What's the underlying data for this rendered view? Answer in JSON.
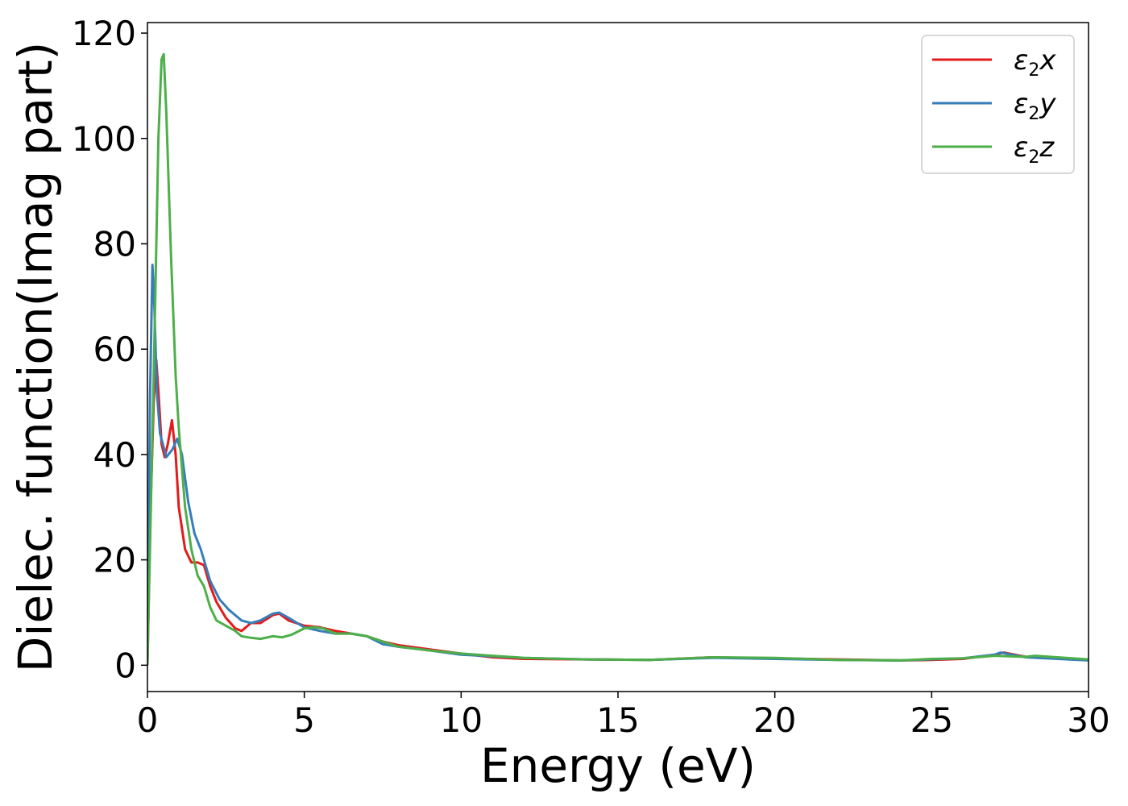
{
  "chart_data": {
    "type": "line",
    "xlabel": "Energy (eV)",
    "ylabel": "Dielec. function(Imag part)",
    "xlim": [
      0,
      30
    ],
    "ylim": [
      -5,
      122
    ],
    "xticks": [
      0,
      5,
      10,
      15,
      20,
      25,
      30
    ],
    "yticks": [
      0,
      20,
      40,
      60,
      80,
      100,
      120
    ],
    "xtick_labels": [
      "0",
      "5",
      "10",
      "15",
      "20",
      "25",
      "30"
    ],
    "ytick_labels": [
      "0",
      "20",
      "40",
      "60",
      "80",
      "100",
      "120"
    ],
    "grid": false,
    "legend": {
      "position": "top-right",
      "entries": [
        {
          "base": "ε",
          "sub": "2",
          "suffix": "x"
        },
        {
          "base": "ε",
          "sub": "2",
          "suffix": "y"
        },
        {
          "base": "ε",
          "sub": "2",
          "suffix": "z"
        }
      ]
    },
    "series": [
      {
        "color": "#e41a1c",
        "points": [
          [
            0,
            0
          ],
          [
            0.1,
            30
          ],
          [
            0.2,
            50
          ],
          [
            0.28,
            58
          ],
          [
            0.35,
            52
          ],
          [
            0.45,
            42
          ],
          [
            0.55,
            39.5
          ],
          [
            0.65,
            42
          ],
          [
            0.78,
            46.5
          ],
          [
            0.9,
            40
          ],
          [
            1.0,
            30
          ],
          [
            1.2,
            22
          ],
          [
            1.4,
            19.5
          ],
          [
            1.6,
            19.5
          ],
          [
            1.8,
            19
          ],
          [
            2.0,
            15
          ],
          [
            2.2,
            12
          ],
          [
            2.5,
            9
          ],
          [
            2.8,
            7
          ],
          [
            3.0,
            6.5
          ],
          [
            3.3,
            8
          ],
          [
            3.6,
            8
          ],
          [
            4.0,
            9.5
          ],
          [
            4.2,
            9.8
          ],
          [
            4.5,
            8.5
          ],
          [
            5.0,
            7.5
          ],
          [
            5.5,
            7.2
          ],
          [
            6.0,
            6.5
          ],
          [
            6.5,
            6.0
          ],
          [
            7.0,
            5.5
          ],
          [
            7.5,
            4.5
          ],
          [
            8.0,
            3.8
          ],
          [
            9.0,
            3.0
          ],
          [
            10.0,
            2.2
          ],
          [
            11.0,
            1.5
          ],
          [
            12.0,
            1.2
          ],
          [
            14.0,
            1.1
          ],
          [
            16.0,
            1.0
          ],
          [
            18.0,
            1.5
          ],
          [
            20.0,
            1.3
          ],
          [
            22.0,
            1.1
          ],
          [
            24.0,
            0.9
          ],
          [
            25.0,
            1.0
          ],
          [
            26.0,
            1.2
          ],
          [
            27.0,
            2.0
          ],
          [
            27.3,
            2.4
          ],
          [
            28.0,
            1.6
          ],
          [
            30.0,
            1.0
          ]
        ]
      },
      {
        "color": "#377eb8",
        "points": [
          [
            0,
            0
          ],
          [
            0.08,
            50
          ],
          [
            0.16,
            76
          ],
          [
            0.22,
            68
          ],
          [
            0.3,
            52
          ],
          [
            0.4,
            44
          ],
          [
            0.6,
            39.5
          ],
          [
            0.8,
            41
          ],
          [
            0.95,
            43
          ],
          [
            1.1,
            40
          ],
          [
            1.3,
            31
          ],
          [
            1.5,
            25
          ],
          [
            1.7,
            22
          ],
          [
            2.0,
            16
          ],
          [
            2.3,
            12.5
          ],
          [
            2.6,
            10.5
          ],
          [
            3.0,
            8.5
          ],
          [
            3.3,
            8.0
          ],
          [
            3.6,
            8.5
          ],
          [
            4.0,
            9.8
          ],
          [
            4.2,
            10
          ],
          [
            4.5,
            9.0
          ],
          [
            5.0,
            7.2
          ],
          [
            5.5,
            6.5
          ],
          [
            6.0,
            6.0
          ],
          [
            6.5,
            6.0
          ],
          [
            7.0,
            5.5
          ],
          [
            7.5,
            4.0
          ],
          [
            8.0,
            3.5
          ],
          [
            9.0,
            2.8
          ],
          [
            10.0,
            2.0
          ],
          [
            11.0,
            1.7
          ],
          [
            12.0,
            1.4
          ],
          [
            14.0,
            1.1
          ],
          [
            16.0,
            1.0
          ],
          [
            18.0,
            1.4
          ],
          [
            20.0,
            1.2
          ],
          [
            22.0,
            1.0
          ],
          [
            24.0,
            0.9
          ],
          [
            26.0,
            1.3
          ],
          [
            27.0,
            2.0
          ],
          [
            27.2,
            2.4
          ],
          [
            28.0,
            1.5
          ],
          [
            30.0,
            0.9
          ]
        ]
      },
      {
        "color": "#4daf4a",
        "points": [
          [
            0,
            0
          ],
          [
            0.2,
            55
          ],
          [
            0.35,
            100
          ],
          [
            0.45,
            115
          ],
          [
            0.52,
            116
          ],
          [
            0.6,
            105
          ],
          [
            0.75,
            78
          ],
          [
            0.9,
            55
          ],
          [
            1.0,
            45
          ],
          [
            1.2,
            30
          ],
          [
            1.4,
            22
          ],
          [
            1.6,
            17
          ],
          [
            1.8,
            15
          ],
          [
            2.0,
            11
          ],
          [
            2.2,
            8.5
          ],
          [
            2.5,
            7.5
          ],
          [
            2.8,
            6.5
          ],
          [
            3.0,
            5.5
          ],
          [
            3.3,
            5.2
          ],
          [
            3.6,
            5.0
          ],
          [
            4.0,
            5.5
          ],
          [
            4.3,
            5.3
          ],
          [
            4.6,
            5.8
          ],
          [
            5.0,
            7.0
          ],
          [
            5.3,
            7.2
          ],
          [
            5.6,
            7.0
          ],
          [
            6.0,
            6.0
          ],
          [
            6.5,
            6.0
          ],
          [
            7.0,
            5.5
          ],
          [
            7.5,
            4.5
          ],
          [
            8.0,
            3.5
          ],
          [
            9.0,
            2.8
          ],
          [
            10.0,
            2.2
          ],
          [
            11.0,
            1.8
          ],
          [
            12.0,
            1.4
          ],
          [
            14.0,
            1.1
          ],
          [
            16.0,
            1.0
          ],
          [
            18.0,
            1.5
          ],
          [
            20.0,
            1.4
          ],
          [
            22.0,
            1.0
          ],
          [
            24.0,
            0.9
          ],
          [
            25.0,
            1.2
          ],
          [
            26.0,
            1.3
          ],
          [
            27.0,
            1.8
          ],
          [
            28.0,
            1.6
          ],
          [
            28.3,
            1.8
          ],
          [
            30.0,
            1.1
          ]
        ]
      }
    ]
  }
}
